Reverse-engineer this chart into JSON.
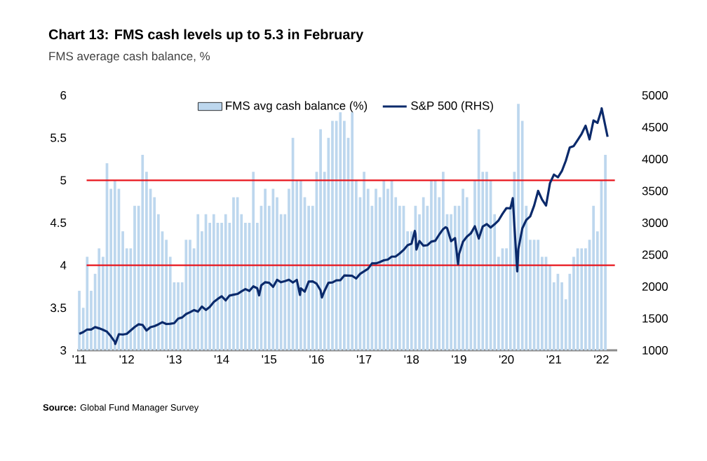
{
  "chart_data": {
    "type": "bar",
    "title": "Chart 13: FMS cash levels up to 5.3 in February",
    "subtitle": "FMS average cash balance, %",
    "annotations": [
      "**Source:** Global Fund Manager Survey"
    ],
    "x": [
      "2011-01",
      "2011-02",
      "2011-03",
      "2011-04",
      "2011-05",
      "2011-06",
      "2011-07",
      "2011-08",
      "2011-09",
      "2011-10",
      "2011-11",
      "2011-12",
      "2012-01",
      "2012-02",
      "2012-03",
      "2012-04",
      "2012-05",
      "2012-06",
      "2012-07",
      "2012-08",
      "2012-09",
      "2012-10",
      "2012-11",
      "2012-12",
      "2013-01",
      "2013-02",
      "2013-03",
      "2013-04",
      "2013-05",
      "2013-06",
      "2013-07",
      "2013-08",
      "2013-09",
      "2013-10",
      "2013-11",
      "2013-12",
      "2014-01",
      "2014-02",
      "2014-03",
      "2014-04",
      "2014-05",
      "2014-06",
      "2014-07",
      "2014-08",
      "2014-09",
      "2014-10",
      "2014-11",
      "2014-12",
      "2015-01",
      "2015-02",
      "2015-03",
      "2015-04",
      "2015-05",
      "2015-06",
      "2015-07",
      "2015-08",
      "2015-09",
      "2015-10",
      "2015-11",
      "2015-12",
      "2016-01",
      "2016-02",
      "2016-03",
      "2016-04",
      "2016-05",
      "2016-06",
      "2016-07",
      "2016-08",
      "2016-09",
      "2016-10",
      "2016-11",
      "2016-12",
      "2017-01",
      "2017-02",
      "2017-03",
      "2017-04",
      "2017-05",
      "2017-06",
      "2017-07",
      "2017-08",
      "2017-09",
      "2017-10",
      "2017-11",
      "2017-12",
      "2018-01",
      "2018-02",
      "2018-03",
      "2018-04",
      "2018-05",
      "2018-06",
      "2018-07",
      "2018-08",
      "2018-09",
      "2018-10",
      "2018-11",
      "2018-12",
      "2019-01",
      "2019-02",
      "2019-03",
      "2019-04",
      "2019-05",
      "2019-06",
      "2019-07",
      "2019-08",
      "2019-09",
      "2019-10",
      "2019-11",
      "2019-12",
      "2020-01",
      "2020-02",
      "2020-03",
      "2020-04",
      "2020-05",
      "2020-06",
      "2020-07",
      "2020-08",
      "2020-09",
      "2020-10",
      "2020-11",
      "2020-12",
      "2021-01",
      "2021-02",
      "2021-03",
      "2021-04",
      "2021-05",
      "2021-06",
      "2021-07",
      "2021-08",
      "2021-09",
      "2021-10",
      "2021-11",
      "2021-12",
      "2022-01",
      "2022-02"
    ],
    "series": [
      {
        "name": "FMS avg cash balance (%)",
        "color": "#bdd7ee",
        "values": [
          3.7,
          3.5,
          4.1,
          3.7,
          3.9,
          4.2,
          4.1,
          5.2,
          4.9,
          5.0,
          4.9,
          4.4,
          4.2,
          4.2,
          4.7,
          4.7,
          5.3,
          5.1,
          4.9,
          4.8,
          4.6,
          4.4,
          4.3,
          4.1,
          3.8,
          3.8,
          3.8,
          4.3,
          4.3,
          4.2,
          4.6,
          4.4,
          4.6,
          4.5,
          4.6,
          4.5,
          4.5,
          4.6,
          4.5,
          4.8,
          4.8,
          4.6,
          4.5,
          4.5,
          5.1,
          4.5,
          4.7,
          4.9,
          4.7,
          4.9,
          4.8,
          4.6,
          4.6,
          4.9,
          5.5,
          5.0,
          5.0,
          4.8,
          4.7,
          4.7,
          5.1,
          5.6,
          5.1,
          5.5,
          5.7,
          5.7,
          5.8,
          5.7,
          5.5,
          5.8,
          5.0,
          4.8,
          5.1,
          4.9,
          4.7,
          4.9,
          4.8,
          5.0,
          4.9,
          5.0,
          4.8,
          4.7,
          4.7,
          4.4,
          4.4,
          4.7,
          4.6,
          4.8,
          4.7,
          5.0,
          5.0,
          4.8,
          5.1,
          4.6,
          4.6,
          4.7,
          4.7,
          4.9,
          4.8,
          4.4,
          5.0,
          5.6,
          5.1,
          5.1,
          5.0,
          4.6,
          4.1,
          4.2,
          4.2,
          4.7,
          5.1,
          5.9,
          5.7,
          4.7,
          4.3,
          4.3,
          4.3,
          4.1,
          4.1,
          4.0,
          3.8,
          3.9,
          3.8,
          3.6,
          3.9,
          4.1,
          4.2,
          4.2,
          4.2,
          4.3,
          4.7,
          4.4,
          5.0,
          5.3
        ]
      },
      {
        "name": "S&P 500 (RHS)",
        "type": "line",
        "axis": "y2",
        "color": "#0b2a6b",
        "x": [
          "2011-01",
          "2011-02",
          "2011-03",
          "2011-04",
          "2011-05",
          "2011-06",
          "2011-07",
          "2011-08",
          "2011-09",
          "2011-10",
          "2011-10-04",
          "2011-11",
          "2011-12",
          "2012-01",
          "2012-02",
          "2012-03",
          "2012-04",
          "2012-05",
          "2012-06",
          "2012-07",
          "2012-08",
          "2012-09",
          "2012-10",
          "2012-11",
          "2012-12",
          "2013-01",
          "2013-02",
          "2013-03",
          "2013-04",
          "2013-05",
          "2013-06",
          "2013-07",
          "2013-08",
          "2013-09",
          "2013-10",
          "2013-11",
          "2013-12",
          "2014-01",
          "2014-02",
          "2014-03",
          "2014-04",
          "2014-05",
          "2014-06",
          "2014-07",
          "2014-08",
          "2014-09",
          "2014-10",
          "2014-10-15",
          "2014-11",
          "2014-12",
          "2015-01",
          "2015-02",
          "2015-03",
          "2015-04",
          "2015-05",
          "2015-06",
          "2015-07",
          "2015-08",
          "2015-08-25",
          "2015-09",
          "2015-10",
          "2015-11",
          "2015-12",
          "2016-01",
          "2016-02",
          "2016-02-11",
          "2016-03",
          "2016-04",
          "2016-05",
          "2016-06",
          "2016-07",
          "2016-08",
          "2016-09",
          "2016-10",
          "2016-11",
          "2016-12",
          "2017-01",
          "2017-02",
          "2017-03",
          "2017-04",
          "2017-05",
          "2017-06",
          "2017-07",
          "2017-08",
          "2017-09",
          "2017-10",
          "2017-11",
          "2017-12",
          "2018-01",
          "2018-01-26",
          "2018-02",
          "2018-02-08",
          "2018-03",
          "2018-04",
          "2018-05",
          "2018-06",
          "2018-07",
          "2018-08",
          "2018-09",
          "2018-09-20",
          "2018-10",
          "2018-11",
          "2018-12",
          "2018-12-24",
          "2019-01",
          "2019-02",
          "2019-03",
          "2019-04",
          "2019-05",
          "2019-06",
          "2019-07",
          "2019-08",
          "2019-09",
          "2019-10",
          "2019-11",
          "2019-12",
          "2020-01",
          "2020-02",
          "2020-02-19",
          "2020-03",
          "2020-03-23",
          "2020-04",
          "2020-05",
          "2020-06",
          "2020-07",
          "2020-08",
          "2020-09",
          "2020-10",
          "2020-11",
          "2020-12",
          "2021-01",
          "2021-02",
          "2021-03",
          "2021-04",
          "2021-05",
          "2021-06",
          "2021-07",
          "2021-08",
          "2021-09",
          "2021-10",
          "2021-11",
          "2021-12",
          "2022-01",
          "2022-01-03",
          "2022-02",
          "2022-02-18"
        ],
        "values": [
          1258,
          1286,
          1327,
          1326,
          1364,
          1345,
          1321,
          1292,
          1219,
          1131,
          1099,
          1253,
          1247,
          1258,
          1312,
          1366,
          1408,
          1398,
          1310,
          1362,
          1379,
          1407,
          1441,
          1412,
          1416,
          1426,
          1498,
          1515,
          1569,
          1598,
          1631,
          1606,
          1686,
          1633,
          1682,
          1757,
          1806,
          1848,
          1783,
          1859,
          1872,
          1884,
          1924,
          1960,
          1931,
          2003,
          1972,
          1862,
          2018,
          2068,
          2059,
          1995,
          2105,
          2068,
          2086,
          2107,
          2063,
          2104,
          1868,
          1972,
          1920,
          2079,
          2080,
          2044,
          1940,
          1829,
          1932,
          2060,
          2065,
          2097,
          2099,
          2174,
          2171,
          2168,
          2126,
          2199,
          2239,
          2279,
          2364,
          2363,
          2384,
          2412,
          2423,
          2470,
          2472,
          2519,
          2575,
          2648,
          2674,
          2873,
          2824,
          2581,
          2714,
          2641,
          2648,
          2705,
          2718,
          2816,
          2902,
          2931,
          2914,
          2712,
          2760,
          2351,
          2507,
          2704,
          2784,
          2834,
          2946,
          2752,
          2942,
          2980,
          2926,
          2977,
          3038,
          3141,
          3231,
          3226,
          3386,
          2954,
          2237,
          2585,
          2912,
          3044,
          3100,
          3271,
          3500,
          3363,
          3270,
          3622,
          3756,
          3714,
          3811,
          3973,
          4181,
          4204,
          4298,
          4395,
          4523,
          4308,
          4605,
          4567,
          4766,
          4796,
          4516,
          4349
        ]
      }
    ],
    "xlim": [
      "2010-12-15",
      "2022-05"
    ],
    "xticks": [
      {
        "value": "2011-01",
        "label": "'11"
      },
      {
        "value": "2012-01",
        "label": "'12"
      },
      {
        "value": "2013-01",
        "label": "'13"
      },
      {
        "value": "2014-01",
        "label": "'14"
      },
      {
        "value": "2015-01",
        "label": "'15"
      },
      {
        "value": "2016-01",
        "label": "'16"
      },
      {
        "value": "2017-01",
        "label": "'17"
      },
      {
        "value": "2018-01",
        "label": "'18"
      },
      {
        "value": "2019-01",
        "label": "'19"
      },
      {
        "value": "2020-01",
        "label": "'20"
      },
      {
        "value": "2021-01",
        "label": "'21"
      },
      {
        "value": "2022-01",
        "label": "'22"
      }
    ],
    "ylim": [
      3,
      6
    ],
    "yticks": [
      3,
      3.5,
      4,
      4.5,
      5,
      5.5,
      6
    ],
    "y2lim": [
      1000,
      5000
    ],
    "y2ticks": [
      1000,
      1500,
      2000,
      2500,
      3000,
      3500,
      4000,
      4500,
      5000
    ],
    "ref_lines": [
      {
        "axis": "y",
        "value": 5,
        "color": "#e8141c"
      },
      {
        "axis": "y",
        "value": 4,
        "color": "#e8141c"
      }
    ],
    "legend": "top"
  }
}
